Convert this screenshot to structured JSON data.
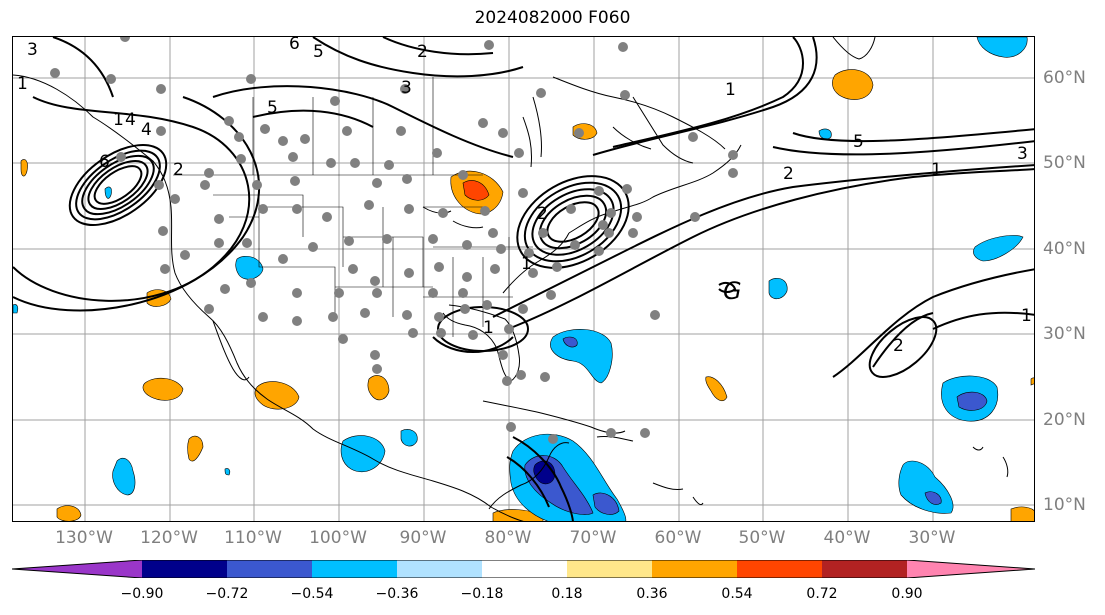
{
  "title": "2024082000 F060",
  "lon_labels": [
    "130°W",
    "120°W",
    "110°W",
    "100°W",
    "90°W",
    "80°W",
    "70°W",
    "60°W",
    "50°W",
    "40°W",
    "30°W"
  ],
  "lat_labels": [
    "60°N",
    "50°N",
    "40°N",
    "30°N",
    "20°N",
    "10°N"
  ],
  "colorbar": {
    "ticks": [
      "−0.90",
      "−0.72",
      "−0.54",
      "−0.36",
      "−0.18",
      "0.18",
      "0.36",
      "0.54",
      "0.72",
      "0.90"
    ],
    "colors": [
      "#9a36c9",
      "#00008b",
      "#3b58cf",
      "#00bfff",
      "#b0e2ff",
      "#ffffff",
      "#ffe78a",
      "#ffa500",
      "#ff4500",
      "#b22222",
      "#ff84b0"
    ]
  },
  "contour_labels": [
    "3",
    "6",
    "5",
    "4",
    "6",
    "2",
    "5",
    "4",
    "2",
    "1",
    "2",
    "3",
    "1",
    "1",
    "2",
    "5",
    "1",
    "3",
    "1",
    "2",
    "1",
    "1",
    "G"
  ],
  "colors": {
    "positive_light": "#ffe78a",
    "positive": "#ffa500",
    "positive_strong": "#ff4500",
    "negative_light": "#b0e2ff",
    "negative": "#00bfff",
    "negative_mid": "#3b58cf",
    "negative_strong": "#00008b",
    "station": "#808080"
  }
}
